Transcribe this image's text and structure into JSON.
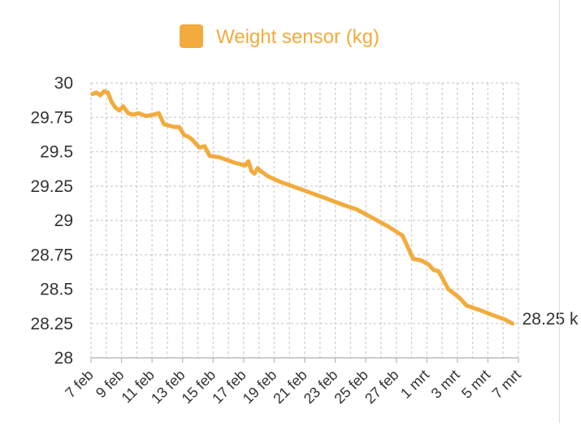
{
  "chart_data": {
    "type": "line",
    "title": "",
    "legend": {
      "entries": [
        "Weight sensor (kg)"
      ],
      "placement": "top"
    },
    "series": [
      {
        "name": "Weight sensor (kg)",
        "color": "#f2ab3c",
        "points": [
          [
            "7 feb",
            29.92
          ],
          [
            "7 feb",
            29.93
          ],
          [
            "7 feb",
            29.91
          ],
          [
            "7 feb",
            29.94
          ],
          [
            "8 feb",
            29.93
          ],
          [
            "8 feb",
            29.86
          ],
          [
            "8 feb",
            29.82
          ],
          [
            "8 feb",
            29.8
          ],
          [
            "9 feb",
            29.83
          ],
          [
            "9 feb",
            29.78
          ],
          [
            "9 feb",
            29.77
          ],
          [
            "10 feb",
            29.78
          ],
          [
            "10 feb",
            29.76
          ],
          [
            "11 feb",
            29.77
          ],
          [
            "11 feb",
            29.78
          ],
          [
            "11 feb",
            29.7
          ],
          [
            "12 feb",
            29.69
          ],
          [
            "12 feb",
            29.68
          ],
          [
            "12 feb",
            29.68
          ],
          [
            "13 feb",
            29.62
          ],
          [
            "13 feb",
            29.61
          ],
          [
            "13 feb",
            29.59
          ],
          [
            "13 feb",
            29.56
          ],
          [
            "14 feb",
            29.53
          ],
          [
            "14 feb",
            29.54
          ],
          [
            "14 feb",
            29.47
          ],
          [
            "15 feb",
            29.46
          ],
          [
            "16 feb",
            29.42
          ],
          [
            "17 feb",
            29.4
          ],
          [
            "17 feb",
            29.43
          ],
          [
            "17 feb",
            29.36
          ],
          [
            "17 feb",
            29.34
          ],
          [
            "17 feb",
            29.38
          ],
          [
            "18 feb",
            29.36
          ],
          [
            "18 feb",
            29.32
          ],
          [
            "19 feb",
            29.28
          ],
          [
            "20 feb",
            29.24
          ],
          [
            "21 feb",
            29.2
          ],
          [
            "22 feb",
            29.16
          ],
          [
            "23 feb",
            29.13
          ],
          [
            "23 feb",
            29.11
          ],
          [
            "24 feb",
            29.08
          ],
          [
            "25 feb",
            29.02
          ],
          [
            "26 feb",
            28.96
          ],
          [
            "27 feb",
            28.89
          ],
          [
            "28 feb",
            28.72
          ],
          [
            "28 feb",
            28.71
          ],
          [
            "1 mrt",
            28.68
          ],
          [
            "1 mrt",
            28.64
          ],
          [
            "1 mrt",
            28.63
          ],
          [
            "2 mrt",
            28.5
          ],
          [
            "3 mrt",
            28.44
          ],
          [
            "3 mrt",
            28.38
          ],
          [
            "4 mrt",
            28.35
          ],
          [
            "5 mrt",
            28.32
          ],
          [
            "5 mrt",
            28.3
          ],
          [
            "6 mrt",
            28.28
          ],
          [
            "6 mrt",
            28.25
          ]
        ]
      }
    ],
    "x_axis": {
      "ticks": [
        "7 feb",
        "9 feb",
        "11 feb",
        "13 feb",
        "15 feb",
        "17 feb",
        "19 feb",
        "21 feb",
        "23 feb",
        "25 feb",
        "27 feb",
        "1 mrt",
        "3 mrt",
        "5 mrt",
        "7 mrt"
      ],
      "minor_gridlines_between_ticks": true
    },
    "y_axis": {
      "ticks": [
        "30",
        "29.75",
        "29.5",
        "29.25",
        "29",
        "28.75",
        "28.5",
        "28.25",
        "28"
      ],
      "ylim": [
        28,
        30
      ]
    },
    "grid": true,
    "grid_style": "dashed",
    "end_label": "28.25 k"
  }
}
